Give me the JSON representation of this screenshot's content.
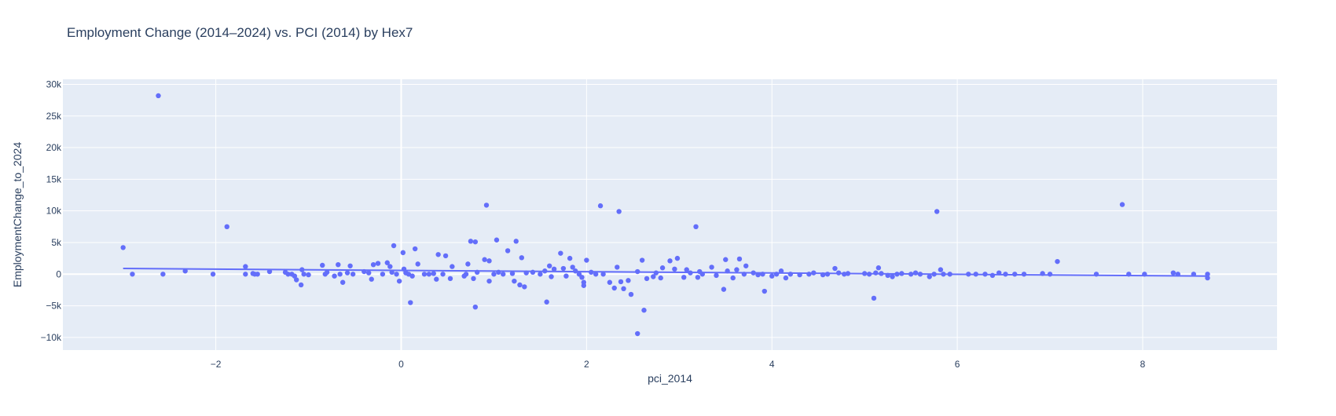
{
  "chart_data": {
    "type": "scatter",
    "title": "Employment Change (2014–2024) vs. PCI (2014) by Hex7",
    "xlabel": "pci_2014",
    "ylabel": "EmploymentChange_to_2024",
    "xlim": [
      -3.65,
      9.45
    ],
    "ylim": [
      -12000,
      30800
    ],
    "xticks": [
      -2,
      0,
      2,
      4,
      6,
      8
    ],
    "xtick_labels": [
      "−2",
      "0",
      "2",
      "4",
      "6",
      "8"
    ],
    "yticks": [
      -10000,
      -5000,
      0,
      5000,
      10000,
      15000,
      20000,
      25000,
      30000
    ],
    "ytick_labels": [
      "−10k",
      "−5k",
      "0",
      "5k",
      "10k",
      "15k",
      "20k",
      "25k",
      "30k"
    ],
    "grid": true,
    "colors": {
      "marker": "#636efa",
      "trend": "#636efa",
      "plot_bg": "#e5ecf6",
      "grid": "#ffffff",
      "text": "#2a3f5f"
    },
    "trendline": {
      "x": [
        -3.0,
        8.7
      ],
      "y": [
        900,
        -300
      ]
    },
    "points": [
      {
        "x": -2.62,
        "y": 28200
      },
      {
        "x": -3.0,
        "y": 4200
      },
      {
        "x": -2.9,
        "y": 0
      },
      {
        "x": -2.57,
        "y": 0
      },
      {
        "x": -2.33,
        "y": 500
      },
      {
        "x": -2.03,
        "y": 0
      },
      {
        "x": -1.88,
        "y": 7500
      },
      {
        "x": -1.68,
        "y": 1200
      },
      {
        "x": -1.68,
        "y": 0
      },
      {
        "x": -1.6,
        "y": 100
      },
      {
        "x": -1.58,
        "y": 0
      },
      {
        "x": -1.55,
        "y": 0
      },
      {
        "x": -1.42,
        "y": 400
      },
      {
        "x": -1.25,
        "y": 300
      },
      {
        "x": -1.22,
        "y": 0
      },
      {
        "x": -1.18,
        "y": 0
      },
      {
        "x": -1.15,
        "y": -300
      },
      {
        "x": -1.13,
        "y": -900
      },
      {
        "x": -1.08,
        "y": -1700
      },
      {
        "x": -1.07,
        "y": 700
      },
      {
        "x": -1.05,
        "y": 0
      },
      {
        "x": -1.0,
        "y": -100
      },
      {
        "x": -0.85,
        "y": 1400
      },
      {
        "x": -0.82,
        "y": 0
      },
      {
        "x": -0.8,
        "y": 300
      },
      {
        "x": -0.72,
        "y": -300
      },
      {
        "x": -0.68,
        "y": 1500
      },
      {
        "x": -0.66,
        "y": 0
      },
      {
        "x": -0.63,
        "y": -1300
      },
      {
        "x": -0.58,
        "y": 200
      },
      {
        "x": -0.55,
        "y": 1300
      },
      {
        "x": -0.52,
        "y": 0
      },
      {
        "x": -0.4,
        "y": 400
      },
      {
        "x": -0.35,
        "y": 200
      },
      {
        "x": -0.32,
        "y": -800
      },
      {
        "x": -0.3,
        "y": 1500
      },
      {
        "x": -0.25,
        "y": 1700
      },
      {
        "x": -0.2,
        "y": 0
      },
      {
        "x": -0.15,
        "y": 1800
      },
      {
        "x": -0.12,
        "y": 1200
      },
      {
        "x": -0.1,
        "y": 300
      },
      {
        "x": -0.08,
        "y": 4500
      },
      {
        "x": -0.05,
        "y": 0
      },
      {
        "x": -0.02,
        "y": -1100
      },
      {
        "x": 0.02,
        "y": 3400
      },
      {
        "x": 0.03,
        "y": 800
      },
      {
        "x": 0.05,
        "y": 200
      },
      {
        "x": 0.08,
        "y": 0
      },
      {
        "x": 0.1,
        "y": -4500
      },
      {
        "x": 0.12,
        "y": -300
      },
      {
        "x": 0.15,
        "y": 4000
      },
      {
        "x": 0.18,
        "y": 1600
      },
      {
        "x": 0.25,
        "y": 0
      },
      {
        "x": 0.3,
        "y": 0
      },
      {
        "x": 0.35,
        "y": 100
      },
      {
        "x": 0.38,
        "y": -800
      },
      {
        "x": 0.4,
        "y": 3100
      },
      {
        "x": 0.45,
        "y": 0
      },
      {
        "x": 0.48,
        "y": 2900
      },
      {
        "x": 0.53,
        "y": -700
      },
      {
        "x": 0.55,
        "y": 1200
      },
      {
        "x": 0.68,
        "y": -300
      },
      {
        "x": 0.7,
        "y": 0
      },
      {
        "x": 0.72,
        "y": 1600
      },
      {
        "x": 0.75,
        "y": 5200
      },
      {
        "x": 0.78,
        "y": -700
      },
      {
        "x": 0.8,
        "y": 5100
      },
      {
        "x": 0.8,
        "y": -5200
      },
      {
        "x": 0.82,
        "y": 300
      },
      {
        "x": 0.9,
        "y": 2300
      },
      {
        "x": 0.92,
        "y": 10900
      },
      {
        "x": 0.95,
        "y": 2100
      },
      {
        "x": 0.95,
        "y": -1100
      },
      {
        "x": 1.0,
        "y": 0
      },
      {
        "x": 1.03,
        "y": 5400
      },
      {
        "x": 1.05,
        "y": 300
      },
      {
        "x": 1.1,
        "y": 0
      },
      {
        "x": 1.15,
        "y": 3700
      },
      {
        "x": 1.2,
        "y": 100
      },
      {
        "x": 1.22,
        "y": -1100
      },
      {
        "x": 1.24,
        "y": 5200
      },
      {
        "x": 1.28,
        "y": -1700
      },
      {
        "x": 1.3,
        "y": 2600
      },
      {
        "x": 1.33,
        "y": -2000
      },
      {
        "x": 1.35,
        "y": 200
      },
      {
        "x": 1.42,
        "y": 300
      },
      {
        "x": 1.5,
        "y": 0
      },
      {
        "x": 1.55,
        "y": 500
      },
      {
        "x": 1.57,
        "y": -4400
      },
      {
        "x": 1.6,
        "y": 1300
      },
      {
        "x": 1.62,
        "y": -400
      },
      {
        "x": 1.65,
        "y": 800
      },
      {
        "x": 1.72,
        "y": 3300
      },
      {
        "x": 1.75,
        "y": 900
      },
      {
        "x": 1.78,
        "y": -300
      },
      {
        "x": 1.82,
        "y": 2500
      },
      {
        "x": 1.85,
        "y": 1100
      },
      {
        "x": 1.88,
        "y": 500
      },
      {
        "x": 1.92,
        "y": 0
      },
      {
        "x": 1.95,
        "y": -500
      },
      {
        "x": 1.97,
        "y": -1300
      },
      {
        "x": 1.97,
        "y": -1800
      },
      {
        "x": 2.0,
        "y": 2200
      },
      {
        "x": 2.05,
        "y": 300
      },
      {
        "x": 2.1,
        "y": 0
      },
      {
        "x": 2.15,
        "y": 10800
      },
      {
        "x": 2.18,
        "y": 0
      },
      {
        "x": 2.25,
        "y": -1300
      },
      {
        "x": 2.3,
        "y": -2200
      },
      {
        "x": 2.33,
        "y": 1100
      },
      {
        "x": 2.35,
        "y": 9900
      },
      {
        "x": 2.37,
        "y": -1200
      },
      {
        "x": 2.4,
        "y": -2300
      },
      {
        "x": 2.45,
        "y": -1000
      },
      {
        "x": 2.48,
        "y": -3200
      },
      {
        "x": 2.55,
        "y": 400
      },
      {
        "x": 2.55,
        "y": -9400
      },
      {
        "x": 2.6,
        "y": 2200
      },
      {
        "x": 2.62,
        "y": -5700
      },
      {
        "x": 2.65,
        "y": -700
      },
      {
        "x": 2.72,
        "y": -400
      },
      {
        "x": 2.75,
        "y": 200
      },
      {
        "x": 2.8,
        "y": -600
      },
      {
        "x": 2.82,
        "y": 1000
      },
      {
        "x": 2.9,
        "y": 2100
      },
      {
        "x": 2.95,
        "y": 800
      },
      {
        "x": 2.98,
        "y": 2500
      },
      {
        "x": 3.05,
        "y": -500
      },
      {
        "x": 3.08,
        "y": 700
      },
      {
        "x": 3.12,
        "y": 200
      },
      {
        "x": 3.18,
        "y": 7500
      },
      {
        "x": 3.2,
        "y": -500
      },
      {
        "x": 3.22,
        "y": 400
      },
      {
        "x": 3.25,
        "y": 0
      },
      {
        "x": 3.35,
        "y": 1100
      },
      {
        "x": 3.4,
        "y": -200
      },
      {
        "x": 3.48,
        "y": -2400
      },
      {
        "x": 3.5,
        "y": 2300
      },
      {
        "x": 3.52,
        "y": 500
      },
      {
        "x": 3.58,
        "y": -600
      },
      {
        "x": 3.62,
        "y": 700
      },
      {
        "x": 3.65,
        "y": 2400
      },
      {
        "x": 3.7,
        "y": 0
      },
      {
        "x": 3.72,
        "y": 1300
      },
      {
        "x": 3.8,
        "y": 200
      },
      {
        "x": 3.85,
        "y": -100
      },
      {
        "x": 3.9,
        "y": 0
      },
      {
        "x": 3.92,
        "y": -2700
      },
      {
        "x": 4.0,
        "y": -300
      },
      {
        "x": 4.05,
        "y": 0
      },
      {
        "x": 4.1,
        "y": 500
      },
      {
        "x": 4.15,
        "y": -600
      },
      {
        "x": 4.2,
        "y": 0
      },
      {
        "x": 4.3,
        "y": -100
      },
      {
        "x": 4.4,
        "y": 0
      },
      {
        "x": 4.45,
        "y": 200
      },
      {
        "x": 4.55,
        "y": -100
      },
      {
        "x": 4.6,
        "y": 0
      },
      {
        "x": 4.68,
        "y": 900
      },
      {
        "x": 4.72,
        "y": 200
      },
      {
        "x": 4.78,
        "y": 0
      },
      {
        "x": 4.82,
        "y": 100
      },
      {
        "x": 5.0,
        "y": 100
      },
      {
        "x": 5.05,
        "y": 0
      },
      {
        "x": 5.1,
        "y": -3800
      },
      {
        "x": 5.12,
        "y": 200
      },
      {
        "x": 5.15,
        "y": 1000
      },
      {
        "x": 5.18,
        "y": 100
      },
      {
        "x": 5.25,
        "y": -200
      },
      {
        "x": 5.3,
        "y": -400
      },
      {
        "x": 5.35,
        "y": 0
      },
      {
        "x": 5.4,
        "y": 100
      },
      {
        "x": 5.5,
        "y": 0
      },
      {
        "x": 5.55,
        "y": 200
      },
      {
        "x": 5.6,
        "y": 0
      },
      {
        "x": 5.7,
        "y": -400
      },
      {
        "x": 5.75,
        "y": 0
      },
      {
        "x": 5.78,
        "y": 9900
      },
      {
        "x": 5.82,
        "y": 700
      },
      {
        "x": 5.85,
        "y": 0
      },
      {
        "x": 5.92,
        "y": 0
      },
      {
        "x": 6.12,
        "y": 0
      },
      {
        "x": 6.2,
        "y": 0
      },
      {
        "x": 6.3,
        "y": 0
      },
      {
        "x": 6.38,
        "y": -200
      },
      {
        "x": 6.45,
        "y": 200
      },
      {
        "x": 6.52,
        "y": 0
      },
      {
        "x": 6.62,
        "y": 0
      },
      {
        "x": 6.72,
        "y": 0
      },
      {
        "x": 6.92,
        "y": 100
      },
      {
        "x": 7.0,
        "y": 0
      },
      {
        "x": 7.08,
        "y": 2000
      },
      {
        "x": 7.5,
        "y": 0
      },
      {
        "x": 7.78,
        "y": 11000
      },
      {
        "x": 7.85,
        "y": 0
      },
      {
        "x": 8.02,
        "y": 0
      },
      {
        "x": 8.33,
        "y": 200
      },
      {
        "x": 8.38,
        "y": 0
      },
      {
        "x": 8.55,
        "y": 0
      },
      {
        "x": 8.7,
        "y": 0
      },
      {
        "x": 8.7,
        "y": -600
      }
    ]
  }
}
